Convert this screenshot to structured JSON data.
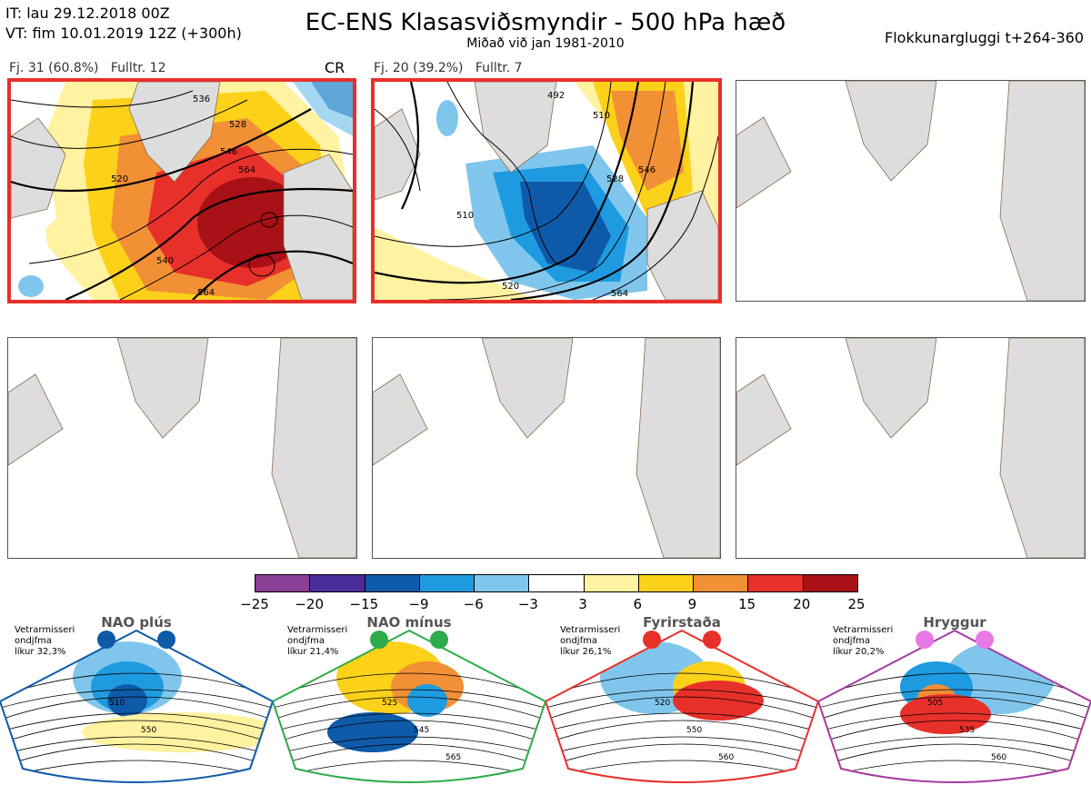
{
  "header": {
    "it_line": "IT: lau 29.12.2018 00Z",
    "vt_line": "VT: fim 10.01.2019 12Z  (+300h)",
    "title": "EC-ENS Klasasviðsmyndir - 500 hPa hæð",
    "subtitle": "Miðað við jan 1981-2010",
    "window": "Flokkunargluggi t+264-360"
  },
  "clusters": [
    {
      "label": "Fj. 31 (60.8%)",
      "rep": "Fulltr. 12",
      "regime_tag": "CR",
      "contour_labels": [
        "520",
        "528",
        "536",
        "540",
        "546",
        "564",
        "564"
      ]
    },
    {
      "label": "Fj. 20 (39.2%)",
      "rep": "Fulltr. 7",
      "regime_tag": "",
      "contour_labels": [
        "492",
        "510",
        "510",
        "520",
        "528",
        "546",
        "564"
      ]
    }
  ],
  "colorbar": {
    "ticks": [
      "−25",
      "−20",
      "−15",
      "−9",
      "−6",
      "−3",
      "3",
      "6",
      "9",
      "15",
      "20",
      "25"
    ],
    "colors": [
      "#8a3f96",
      "#4b2d9a",
      "#0e5aa8",
      "#1e9be0",
      "#80c6ec",
      "#ffffff",
      "#fff2a0",
      "#fcd11a",
      "#f29035",
      "#e8302b",
      "#a81116"
    ]
  },
  "regimes": [
    {
      "name": "NAO plús",
      "prob": "Vetrarmisseri\nondjfma\nlíkur 32,3%",
      "color": "#0e5aa8",
      "labels": [
        "510",
        "550"
      ]
    },
    {
      "name": "NAO mínus",
      "prob": "Vetrarmisseri\nondjfma\nlíkur 21,4%",
      "color": "#2eab4a",
      "labels": [
        "525",
        "545",
        "565"
      ]
    },
    {
      "name": "Fyrirstaða",
      "prob": "Vetrarmisseri\nondjfma\nlíkur 26,1%",
      "color": "#e8302b",
      "labels": [
        "520",
        "550",
        "560"
      ]
    },
    {
      "name": "Hryggur",
      "prob": "Vetrarmisseri\nondjfma\nlíkur 20,2%",
      "color": "#a63aa0",
      "labels": [
        "505",
        "535",
        "560"
      ]
    }
  ],
  "icons": {
    "land": "greenland-europe-outline",
    "dot": "regime-marker-dot"
  }
}
